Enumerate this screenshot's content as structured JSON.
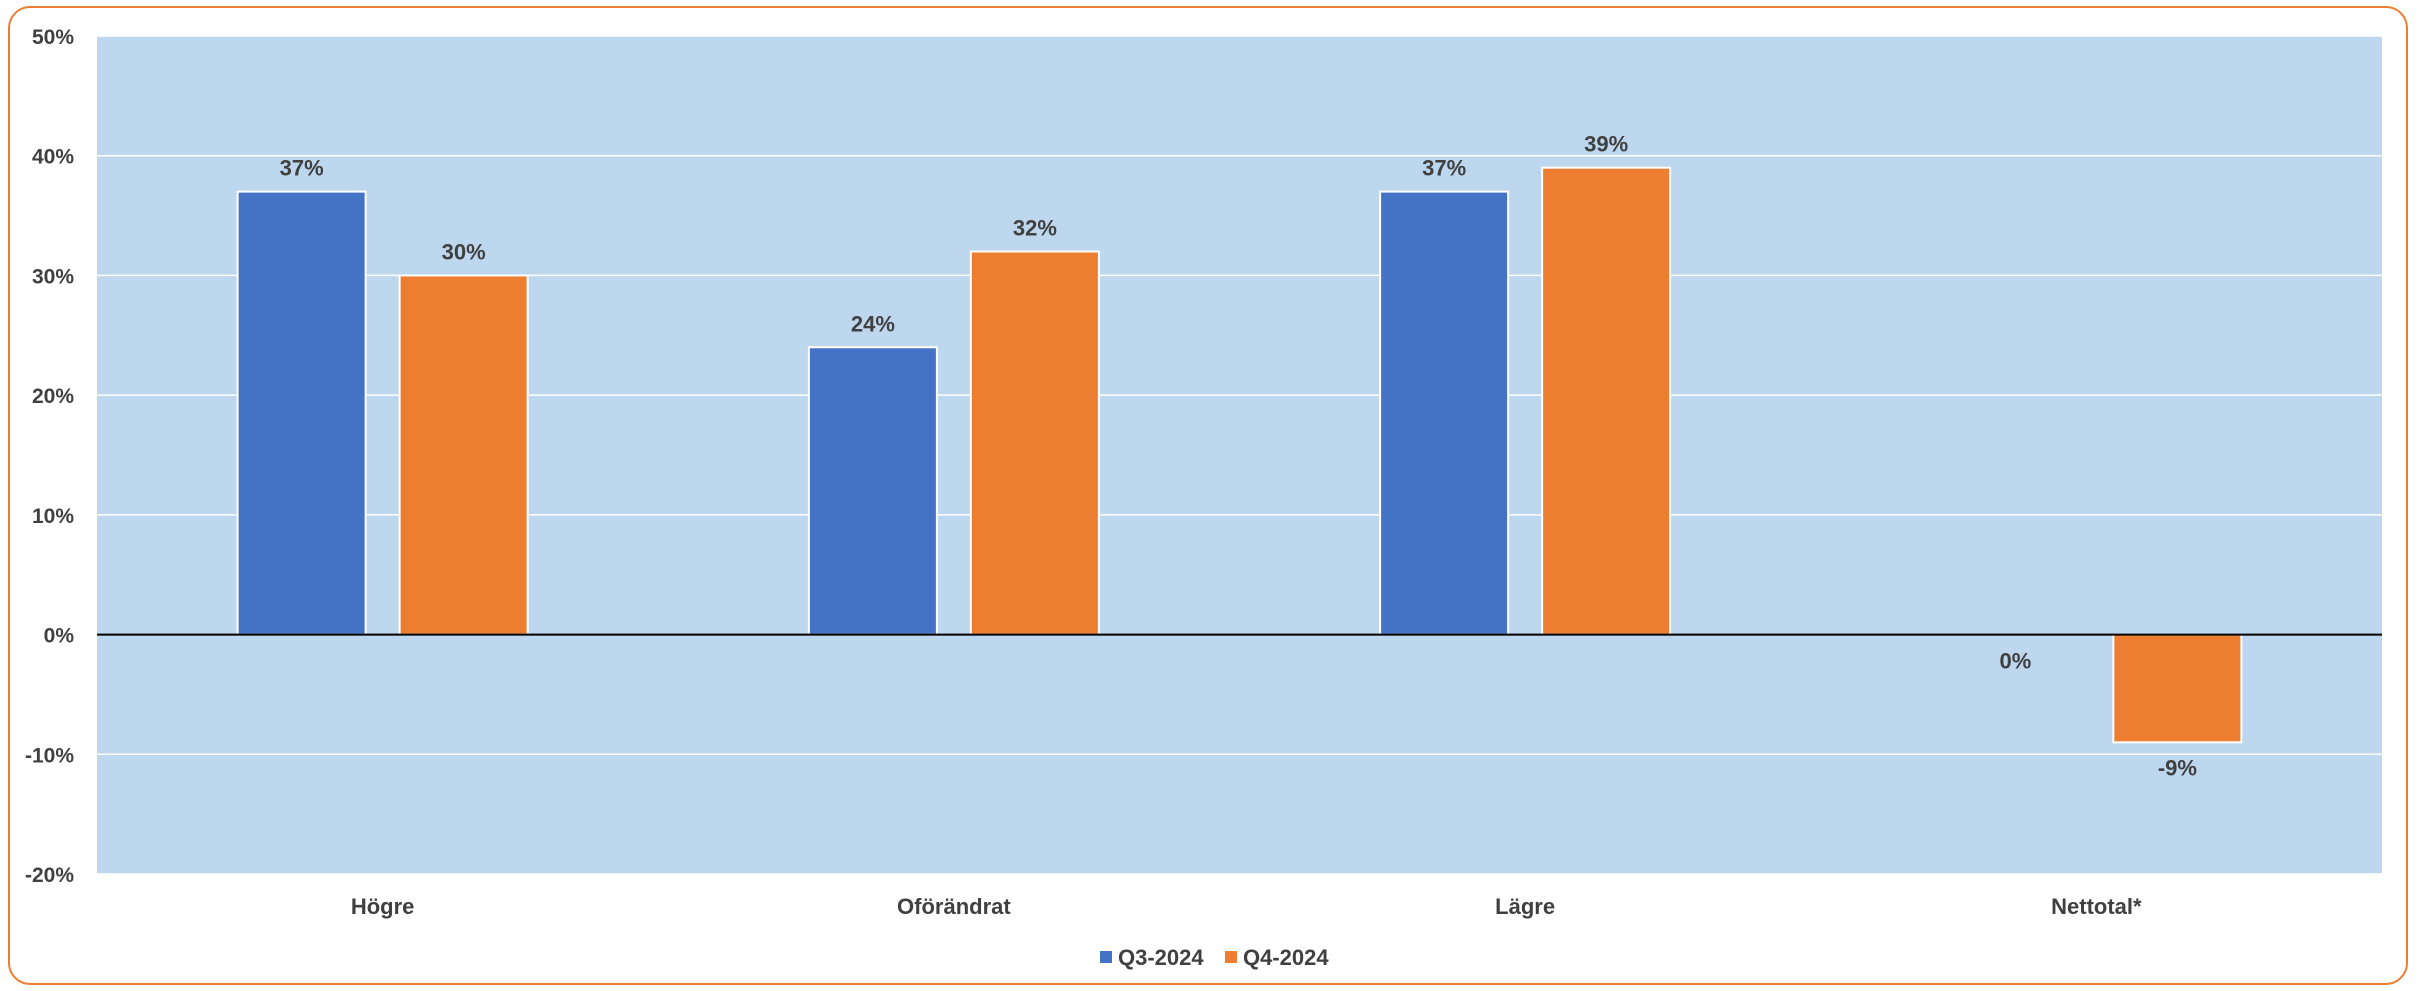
{
  "chart_data": {
    "type": "bar",
    "categories": [
      "Högre",
      "Oförändrat",
      "Lägre",
      "Nettotal*"
    ],
    "series": [
      {
        "name": "Q3-2024",
        "values": [
          37,
          24,
          37,
          0
        ],
        "labels": [
          "37%",
          "24%",
          "37%",
          "0%"
        ]
      },
      {
        "name": "Q4-2024",
        "values": [
          30,
          32,
          39,
          -9
        ],
        "labels": [
          "30%",
          "32%",
          "39%",
          "-9%"
        ]
      }
    ],
    "ylim": [
      -20,
      50
    ],
    "yticks": [
      50,
      40,
      30,
      20,
      10,
      0,
      -10,
      -20
    ],
    "ytick_labels": [
      "50%",
      "40%",
      "30%",
      "20%",
      "10%",
      "0%",
      "-10%",
      "-20%"
    ],
    "grid": true,
    "legend": "bottom-center",
    "title": "",
    "xlabel": "",
    "ylabel": "",
    "colors": {
      "Q3-2024": "#4472C4",
      "Q4-2024": "#ED7D31",
      "plot_background": "#BDD7EE",
      "frame": "#ED7D31"
    }
  }
}
